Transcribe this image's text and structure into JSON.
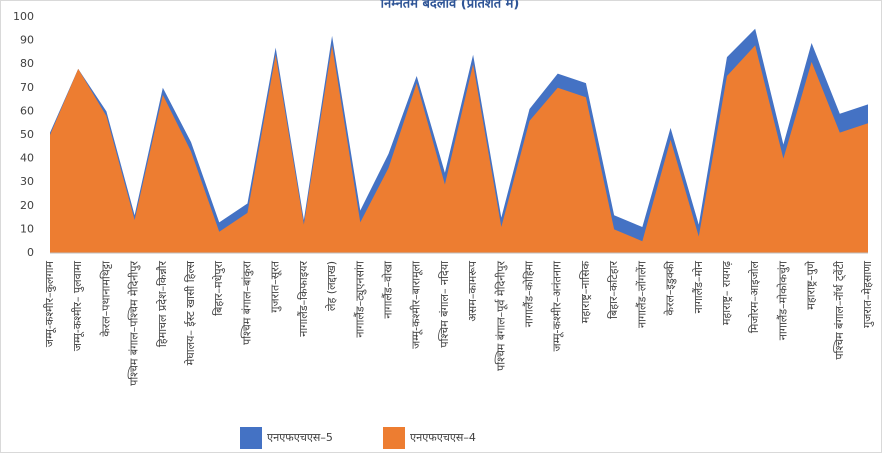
{
  "chart_data": {
    "type": "area",
    "title": "निम्नतम बदलाव (प्रतिशत में)",
    "categories": [
      "जम्मू-कश्मीर–कुलगाम",
      "जम्मू-कश्मीर– पुलवामा",
      "केरल–पथानामथिट्टा",
      "पश्चिम बंगाल–पश्चिम मेदिनीपुर",
      "हिमाचल प्रदेश–किन्नौर",
      "मेघालय– ईस्ट खासी हिल्स",
      "बिहार–मधेपुरा",
      "पश्चिम बंगाल–बांकुरा",
      "गुजरात–सूरत",
      "नागालैंड–किफाइयर",
      "लेह (लद्दाख)",
      "नागालैंड–ट्युएनसांग",
      "नागालैंड–वोखा",
      "जम्मू-कश्मीर–बारामूला",
      "पश्चिम बंगाल– नदिया",
      "असम–कामरूप",
      "पश्चिम बंगाल–पूर्व मेदिनीपुर",
      "नागालैंड–कोहिमा",
      "जम्मू-कश्मीर–अनंतनाग",
      "महाराष्ट्र–नासिक",
      "बिहार–कटिहार",
      "नागालैंड–लोंगलेंग",
      "केरल–इडुक्की",
      "नागालैंड–मोन",
      "महाराष्ट्र– रायगढ़",
      "मिजोरम–आइजोल",
      "नागालैंड–मोकोकचुंग",
      "महाराष्ट्र–पुणे",
      "पश्चिम बंगाल–नॉर्थ ट्वेंटी",
      "गुजरात–मेहसाणा"
    ],
    "series": [
      {
        "name": "एनएफएचएस–5",
        "color": "#4472c4",
        "values": [
          51,
          78,
          60,
          16,
          70,
          47,
          13,
          21,
          87,
          14,
          92,
          18,
          42,
          75,
          34,
          84,
          15,
          61,
          76,
          72,
          16,
          11,
          53,
          12,
          83,
          95,
          46,
          89,
          59,
          63
        ]
      },
      {
        "name": "एनएफएचएस–4",
        "color": "#ed7d31",
        "values": [
          50,
          78,
          58,
          14,
          67,
          43,
          9,
          17,
          84,
          12,
          88,
          13,
          36,
          72,
          29,
          80,
          11,
          56,
          70,
          66,
          10,
          5,
          48,
          7,
          75,
          88,
          40,
          81,
          51,
          55
        ]
      }
    ],
    "ylim": [
      0,
      100
    ],
    "yticks": [
      0,
      10,
      20,
      30,
      40,
      50,
      60,
      70,
      80,
      90,
      100
    ],
    "legend": "bottom"
  }
}
